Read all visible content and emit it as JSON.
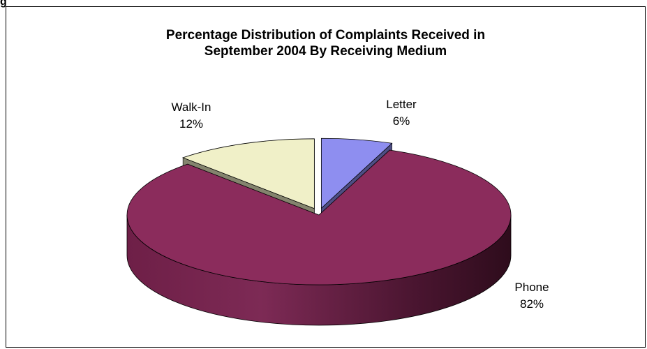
{
  "page": {
    "caption": "g"
  },
  "chart_data": {
    "type": "pie",
    "title_lines": [
      "Percentage Distribution of Complaints Received in",
      "September 2004 By Receiving Medium"
    ],
    "slices": [
      {
        "label": "Letter",
        "value_label": "6%",
        "value": 6,
        "color": "#8e8ef0",
        "exploded": true
      },
      {
        "label": "Phone",
        "value_label": "82%",
        "value": 82,
        "color": "#8b2c5c",
        "exploded": false
      },
      {
        "label": "Walk-In",
        "value_label": "12%",
        "value": 12,
        "color": "#f0f0c8",
        "exploded": true
      }
    ],
    "style": "3d-exploded"
  }
}
